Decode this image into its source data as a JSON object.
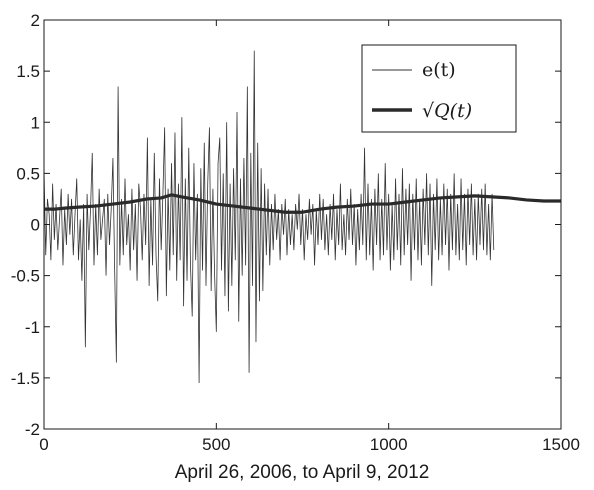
{
  "chart_data": {
    "type": "line",
    "xlabel": "April 26, 2006, to April 9, 2012",
    "ylabel": "",
    "xlim": [
      0,
      1500
    ],
    "ylim": [
      -2,
      2
    ],
    "xticks": [
      0,
      500,
      1000,
      1500
    ],
    "yticks": [
      -2,
      -1.5,
      -1,
      -0.5,
      0,
      0.5,
      1,
      1.5,
      2
    ],
    "grid": false,
    "legend_position": "top-right",
    "series": [
      {
        "name": "e(t)",
        "color": "#333333",
        "note_style": "thin",
        "x_step": 5,
        "values": [
          0.55,
          -0.3,
          0.25,
          0.1,
          -0.35,
          0.4,
          -0.15,
          0.2,
          -0.25,
          0.05,
          0.35,
          -0.4,
          0.15,
          -0.2,
          0.3,
          -0.1,
          0.25,
          -0.3,
          0.1,
          0.45,
          -0.35,
          0.05,
          -0.55,
          0.2,
          -1.2,
          0.3,
          -0.25,
          0.15,
          0.7,
          -0.4,
          0.2,
          -0.3,
          0.35,
          -0.15,
          0.05,
          0.25,
          -0.5,
          0.3,
          -0.2,
          0.15,
          0.65,
          -0.45,
          -1.35,
          1.35,
          -0.4,
          0.25,
          -0.3,
          0.45,
          -0.2,
          0.1,
          -0.45,
          0.35,
          -0.25,
          0.2,
          -0.55,
          0.4,
          0.15,
          -0.35,
          0.3,
          -0.2,
          0.85,
          -0.6,
          0.25,
          -0.4,
          0.7,
          -0.3,
          -0.75,
          0.45,
          -0.25,
          0.3,
          0.95,
          -0.7,
          0.35,
          -0.45,
          0.6,
          -0.3,
          0.9,
          -0.55,
          0.4,
          -0.35,
          1.05,
          -0.8,
          0.45,
          -0.55,
          0.75,
          -0.4,
          -0.9,
          0.6,
          -0.35,
          0.3,
          -1.55,
          0.55,
          -0.45,
          0.8,
          -0.6,
          0.4,
          0.95,
          -0.65,
          0.35,
          -0.5,
          -1.05,
          0.6,
          0.85,
          -0.45,
          0.5,
          -0.7,
          1.0,
          -0.85,
          0.4,
          -0.6,
          0.55,
          -0.35,
          1.1,
          -0.95,
          0.45,
          -0.5,
          0.65,
          -0.4,
          1.35,
          -1.45,
          0.7,
          -0.6,
          1.7,
          -1.15,
          0.8,
          -0.75,
          0.55,
          -0.65,
          0.4,
          -0.3,
          0.35,
          -0.4,
          0.2,
          -0.25,
          0.3,
          -0.15,
          0.15,
          -0.35,
          0.2,
          -0.1,
          0.25,
          -0.3,
          0.15,
          -0.2,
          0.1,
          -0.25,
          0.2,
          -0.05,
          0.3,
          -0.2,
          0.15,
          -0.35,
          0.1,
          -0.15,
          0.25,
          -0.1,
          0.2,
          -0.4,
          0.15,
          -0.2,
          0.3,
          -0.15,
          0.25,
          -0.25,
          0.1,
          -0.3,
          0.2,
          -0.15,
          0.3,
          -0.35,
          0.15,
          -0.2,
          0.4,
          -0.25,
          0.1,
          -0.3,
          0.25,
          -0.15,
          0.35,
          -0.2,
          0.2,
          -0.4,
          0.15,
          -0.25,
          0.3,
          -0.2,
          0.75,
          -0.35,
          0.4,
          -0.3,
          0.25,
          -0.45,
          0.35,
          -0.2,
          0.5,
          -0.35,
          0.25,
          -0.3,
          0.6,
          -0.25,
          0.3,
          -0.45,
          0.2,
          -0.35,
          0.45,
          -0.25,
          0.3,
          -0.4,
          0.55,
          -0.3,
          0.35,
          -0.2,
          0.4,
          -0.55,
          0.3,
          -0.25,
          0.45,
          -0.35,
          0.25,
          -0.4,
          0.35,
          -0.2,
          0.5,
          -0.3,
          0.4,
          -0.6,
          0.3,
          -0.25,
          0.45,
          -0.35,
          0.25,
          -0.3,
          0.4,
          -0.2,
          0.35,
          -0.45,
          0.3,
          -0.25,
          0.5,
          -0.3,
          0.2,
          -0.35,
          0.45,
          -0.25,
          0.3,
          -0.4,
          0.35,
          -0.2,
          0.4,
          -0.3,
          0.25,
          -0.35,
          0.3,
          -0.2,
          0.35,
          -0.25,
          0.4,
          -0.3,
          0.2,
          -0.35,
          0.3,
          -0.25
        ]
      },
      {
        "name": "√Q(t)",
        "color": "#2a2a2a",
        "note_style": "thick",
        "x": [
          0,
          30,
          60,
          100,
          150,
          200,
          250,
          300,
          340,
          370,
          400,
          450,
          500,
          550,
          600,
          650,
          700,
          750,
          800,
          850,
          900,
          950,
          1000,
          1050,
          1100,
          1150,
          1200,
          1250,
          1300,
          1350,
          1400,
          1450,
          1500
        ],
        "values": [
          0.15,
          0.15,
          0.16,
          0.17,
          0.18,
          0.2,
          0.22,
          0.25,
          0.26,
          0.29,
          0.27,
          0.24,
          0.2,
          0.18,
          0.16,
          0.14,
          0.12,
          0.12,
          0.15,
          0.17,
          0.18,
          0.2,
          0.2,
          0.22,
          0.24,
          0.26,
          0.27,
          0.28,
          0.27,
          0.26,
          0.24,
          0.23,
          0.23
        ]
      }
    ]
  }
}
